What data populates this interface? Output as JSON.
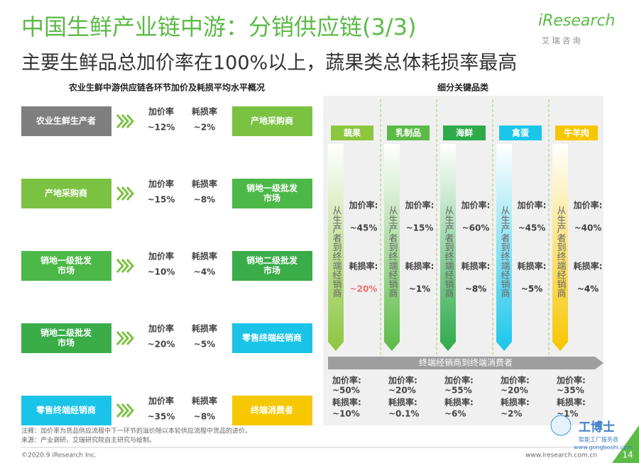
{
  "header": {
    "title": "中国生鲜产业链中游：分销供应链(3/3)",
    "subtitle": "主要生鲜品总加价率在100%以上，蔬果类总体耗损率最高",
    "logo": "iResearch",
    "logo_cn": "艾 瑞 咨 询"
  },
  "left": {
    "title": "农业生鲜中游供应链各环节加价及耗损平均水平概况",
    "rows": [
      {
        "from": [
          "农业生鲜生产者"
        ],
        "from_color": "#7f7f7f",
        "markup_label": "加价率",
        "markup": "~12%",
        "loss_label": "耗损率",
        "loss": "~2%",
        "to": [
          "产地采购商"
        ],
        "to_color": "#7cc242"
      },
      {
        "from": [
          "产地采购商"
        ],
        "from_color": "#7cc242",
        "markup_label": "加价率",
        "markup": "~15%",
        "loss_label": "耗损率",
        "loss": "~8%",
        "to": [
          "销地一级批发",
          "市场"
        ],
        "to_color": "#4cb848"
      },
      {
        "from": [
          "销地一级批发",
          "市场"
        ],
        "from_color": "#4cb848",
        "markup_label": "加价率",
        "markup": "~10%",
        "loss_label": "耗损率",
        "loss": "~4%",
        "to": [
          "销地二级批发",
          "市场"
        ],
        "to_color": "#3aad49"
      },
      {
        "from": [
          "销地二级批发",
          "市场"
        ],
        "from_color": "#3aad49",
        "markup_label": "加价率",
        "markup": "~20%",
        "loss_label": "耗损率",
        "loss": "~5%",
        "to": [
          "零售终端经销商"
        ],
        "to_color": "#19c4e8"
      },
      {
        "from": [
          "零售终端经销商"
        ],
        "from_color": "#19c4e8",
        "markup_label": "加价率",
        "markup": "~35%",
        "loss_label": "耗损率",
        "loss": "~8%",
        "to": [
          "终端消费者"
        ],
        "to_color": "#f7c800"
      }
    ]
  },
  "right": {
    "title": "细分关键品类",
    "flow_text": "从生产者到终端经销商",
    "bottom_flow_text": "终端经销商到终端消费者",
    "categories": [
      {
        "name": "蔬果",
        "color": "#8cc63f",
        "markup_label": "加价率:",
        "markup": "~45%",
        "loss_label": "耗损率:",
        "loss": "~20%",
        "loss_color": "#f26d6d",
        "end_markup_label": "加价率:",
        "end_markup": "~50%",
        "end_loss_label": "耗损率:",
        "end_loss": "~10%"
      },
      {
        "name": "乳制品",
        "color": "#5cba47",
        "markup_label": "加价率:",
        "markup": "~15%",
        "loss_label": "耗损率:",
        "loss": "~1%",
        "loss_color": "#333333",
        "end_markup_label": "加价率:",
        "end_markup": "~20%",
        "end_loss_label": "耗损率:",
        "end_loss": "~0.1%"
      },
      {
        "name": "海鲜",
        "color": "#2eaa4a",
        "markup_label": "加价率:",
        "markup": "~60%",
        "loss_label": "耗损率:",
        "loss": "~8%",
        "loss_color": "#333333",
        "end_markup_label": "加价率:",
        "end_markup": "~55%",
        "end_loss_label": "耗损率:",
        "end_loss": "~6%"
      },
      {
        "name": "禽蛋",
        "color": "#1cc6ea",
        "markup_label": "加价率:",
        "markup": "~45%",
        "loss_label": "耗损率:",
        "loss": "~5%",
        "loss_color": "#333333",
        "end_markup_label": "加价率:",
        "end_markup": "~20%",
        "end_loss_label": "耗损率:",
        "end_loss": "~2%"
      },
      {
        "name": "牛羊肉",
        "color": "#f7c600",
        "markup_label": "加价率:",
        "markup": "~40%",
        "loss_label": "耗损率:",
        "loss": "~4%",
        "loss_color": "#333333",
        "end_markup_label": "加价率:",
        "end_markup": "~35%",
        "end_loss_label": "耗损率:",
        "end_loss": "~1%"
      }
    ]
  },
  "footer": {
    "note": "注释：加价率为货品供应流程中下一环节的溢价除以本轮供应流程中货品的进价。",
    "source": "来源：产业调研，艾瑞研究院自主研究与绘制。",
    "copyright": "©2020.9 iResearch Inc.",
    "website": "www.iresearch.com.cn",
    "page": "14"
  },
  "watermark": {
    "name": "工博士",
    "slogan": "智能工厂服务商",
    "url": "www.gongboshi.com"
  }
}
